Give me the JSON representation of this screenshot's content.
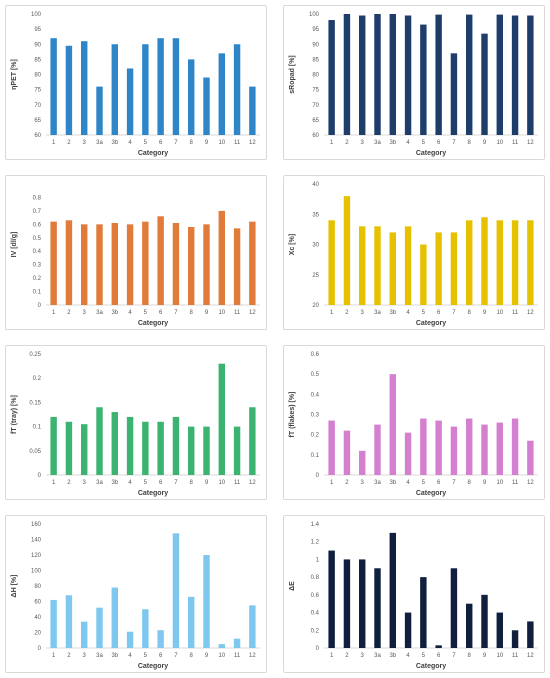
{
  "chart_data": [
    {
      "type": "bar",
      "ylabel": "ηPET [%]",
      "xlabel": "Category",
      "categories": [
        "1",
        "2",
        "3",
        "3a",
        "3b",
        "4",
        "5",
        "6",
        "7",
        "8",
        "9",
        "10",
        "11",
        "12"
      ],
      "values": [
        92,
        89.5,
        91,
        76,
        90,
        82,
        90,
        92,
        92,
        85,
        79,
        87,
        90,
        76
      ],
      "ylim": [
        60,
        100
      ],
      "yticks": [
        60,
        65,
        70,
        75,
        80,
        85,
        90,
        95,
        100
      ],
      "color": "#2e86c8",
      "grid": false
    },
    {
      "type": "bar",
      "ylabel": "sRopad [%]",
      "xlabel": "Category",
      "categories": [
        "1",
        "2",
        "3",
        "3a",
        "3b",
        "4",
        "5",
        "6",
        "7",
        "8",
        "9",
        "10",
        "11",
        "12"
      ],
      "values": [
        98,
        100,
        99.5,
        100,
        100,
        99.5,
        96.5,
        99.8,
        87,
        99.8,
        93.5,
        99.8,
        99.5,
        99.5
      ],
      "ylim": [
        60,
        100
      ],
      "yticks": [
        60,
        65,
        70,
        75,
        80,
        85,
        90,
        95,
        100
      ],
      "color": "#1f3d6b",
      "grid": false
    },
    {
      "type": "bar",
      "ylabel": "IV [dl/g]",
      "xlabel": "Category",
      "categories": [
        "1",
        "2",
        "3",
        "3a",
        "3b",
        "4",
        "5",
        "6",
        "7",
        "8",
        "9",
        "10",
        "11",
        "12"
      ],
      "values": [
        0.62,
        0.63,
        0.6,
        0.6,
        0.61,
        0.6,
        0.62,
        0.66,
        0.61,
        0.58,
        0.6,
        0.7,
        0.57,
        0.62
      ],
      "ylim": [
        0,
        0.9
      ],
      "yticks": [
        0,
        0.1,
        0.2,
        0.3,
        0.4,
        0.5,
        0.6,
        0.7,
        0.8
      ],
      "color": "#e07b39",
      "grid": false
    },
    {
      "type": "bar",
      "ylabel": "Xc [%]",
      "xlabel": "Category",
      "categories": [
        "1",
        "2",
        "3",
        "3a",
        "3b",
        "4",
        "5",
        "6",
        "7",
        "8",
        "9",
        "10",
        "11",
        "12"
      ],
      "values": [
        34,
        38,
        33,
        33,
        32,
        33,
        30,
        32,
        32,
        34,
        34.5,
        34,
        34,
        34
      ],
      "ylim": [
        20,
        40
      ],
      "yticks": [
        20,
        25,
        30,
        35,
        40
      ],
      "color": "#e6c100",
      "grid": false
    },
    {
      "type": "bar",
      "ylabel": "fT (tray) [%]",
      "xlabel": "Category",
      "categories": [
        "1",
        "2",
        "3",
        "3a",
        "3b",
        "4",
        "5",
        "6",
        "7",
        "8",
        "9",
        "10",
        "11",
        "12"
      ],
      "values": [
        0.12,
        0.11,
        0.105,
        0.14,
        0.13,
        0.12,
        0.11,
        0.11,
        0.12,
        0.1,
        0.1,
        0.23,
        0.1,
        0.14
      ],
      "ylim": [
        0,
        0.25
      ],
      "yticks": [
        0,
        0.05,
        0.1,
        0.15,
        0.2,
        0.25
      ],
      "color": "#3cb371",
      "grid": false
    },
    {
      "type": "bar",
      "ylabel": "fT (flakes) [%]",
      "xlabel": "Category",
      "categories": [
        "1",
        "2",
        "3",
        "3a",
        "3b",
        "4",
        "5",
        "6",
        "7",
        "8",
        "9",
        "10",
        "11",
        "12"
      ],
      "values": [
        0.27,
        0.22,
        0.12,
        0.25,
        0.5,
        0.21,
        0.28,
        0.27,
        0.24,
        0.28,
        0.25,
        0.26,
        0.28,
        0.17
      ],
      "ylim": [
        0,
        0.6
      ],
      "yticks": [
        0,
        0.1,
        0.2,
        0.3,
        0.4,
        0.5,
        0.6
      ],
      "color": "#d47fd0",
      "grid": false
    },
    {
      "type": "bar",
      "ylabel": "ΔH [%]",
      "xlabel": "Category",
      "categories": [
        "1",
        "2",
        "3",
        "3a",
        "3b",
        "4",
        "5",
        "6",
        "7",
        "8",
        "9",
        "10",
        "11",
        "12"
      ],
      "values": [
        62,
        68,
        34,
        52,
        78,
        21,
        50,
        23,
        148,
        66,
        120,
        5,
        12,
        55
      ],
      "ylim": [
        0,
        160
      ],
      "yticks": [
        0,
        20,
        40,
        60,
        80,
        100,
        120,
        140,
        160
      ],
      "color": "#7ec8ef",
      "grid": false
    },
    {
      "type": "bar",
      "ylabel": "ΔE",
      "xlabel": "Category",
      "categories": [
        "1",
        "2",
        "3",
        "3a",
        "3b",
        "4",
        "5",
        "6",
        "7",
        "8",
        "9",
        "10",
        "11",
        "12"
      ],
      "values": [
        1.1,
        1.0,
        1.0,
        0.9,
        1.3,
        0.4,
        0.8,
        0.03,
        0.9,
        0.5,
        0.6,
        0.4,
        0.2,
        0.3
      ],
      "ylim": [
        0,
        1.4
      ],
      "yticks": [
        0,
        0.2,
        0.4,
        0.6,
        0.8,
        1.0,
        1.2,
        1.4
      ],
      "color": "#0f1f3d",
      "grid": false
    }
  ]
}
